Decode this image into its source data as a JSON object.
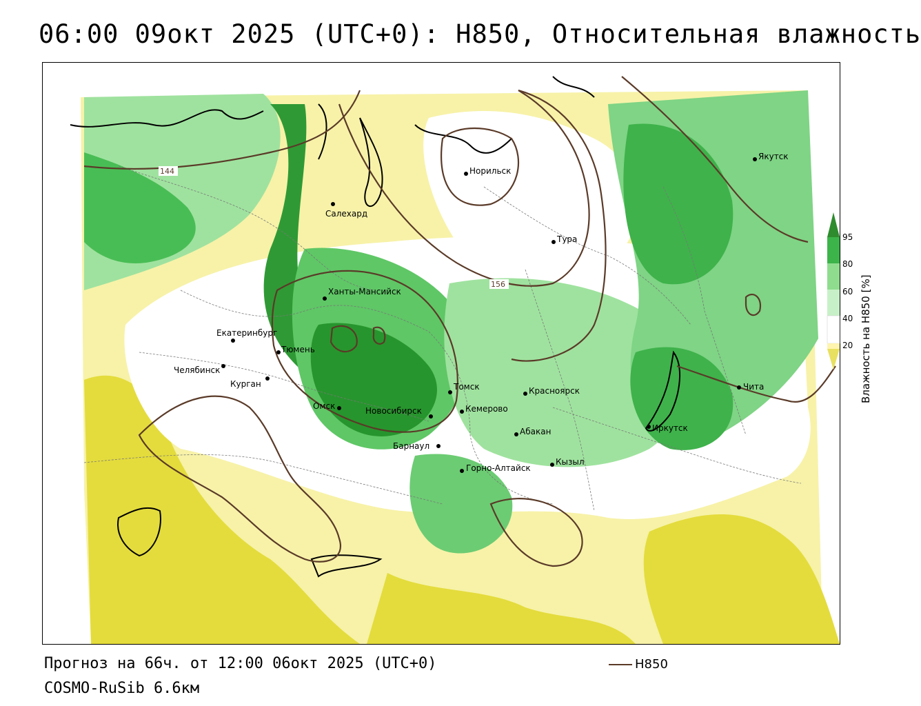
{
  "title": "06:00 09окт 2025 (UTC+0): H850, Относительная влажность",
  "footer": {
    "forecast": "Прогноз на 66ч. от 12:00 06окт 2025 (UTC+0)",
    "model": "COSMO-RuSib 6.6км"
  },
  "legend": {
    "line_label": "H850",
    "line_color": "#5a3a28"
  },
  "colorbar": {
    "title": "Влажность на H850 [%]",
    "ticks": [
      "95",
      "80",
      "60",
      "40",
      "20"
    ],
    "colors": [
      "#2e8b2e",
      "#3cb44a",
      "#8fdc8f",
      "#c8f0c8",
      "#ffffff",
      "#fff4b0",
      "#e8e060",
      "#d8c820"
    ]
  },
  "contour_labels": [
    "144",
    "156"
  ],
  "cities": [
    "Якутск",
    "Норильск",
    "Салехард",
    "Тура",
    "Ханты-Мансийск",
    "Екатеринбург",
    "Тюмень",
    "Челябинск",
    "Курган",
    "Омск",
    "Новосибирск",
    "Томск",
    "Красноярск",
    "Кемерово",
    "Абакан",
    "Барнаул",
    "Горно-Алтайск",
    "Кызыл",
    "Иркутск",
    "Чита"
  ]
}
